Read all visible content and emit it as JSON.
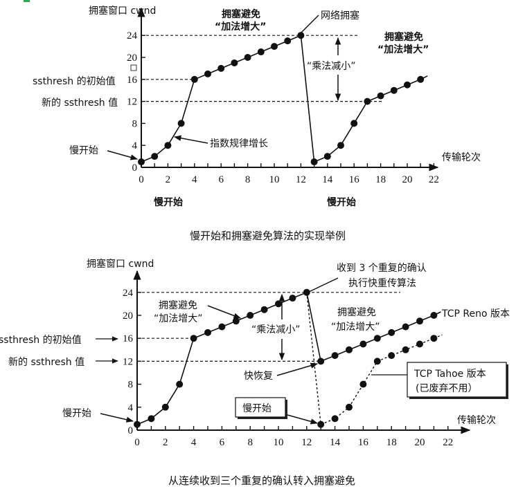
{
  "marker_color": "#22b14c",
  "top": {
    "y_axis_label": "拥塞窗口 cwnd",
    "x_axis_label": "传输轮次",
    "y_ticks": [
      "0",
      "4",
      "8",
      "12",
      "16",
      "20",
      "24"
    ],
    "x_ticks": [
      "0",
      "2",
      "4",
      "6",
      "8",
      "10",
      "12",
      "14",
      "16",
      "18",
      "20",
      "22"
    ],
    "ssthresh_init_label": "ssthresh 的初始值",
    "ssthresh_new_label": "新的 ssthresh 值",
    "ca_label_1a": "拥塞避免",
    "ca_label_1b": "“加法增大”",
    "ca_label_2a": "拥塞避免",
    "ca_label_2b": "“加法增大”",
    "congestion_label": "网络拥塞",
    "md_label": "“乘法减小”",
    "exp_label": "指数规律增长",
    "slow_start_label": "慢开始",
    "slow_start_under_1": "慢开始",
    "slow_start_under_2": "慢开始",
    "caption": "慢开始和拥塞避免算法的实现举例"
  },
  "bottom": {
    "y_axis_label": "拥塞窗口 cwnd",
    "x_axis_label": "传输轮次",
    "y_ticks": [
      "0",
      "4",
      "8",
      "12",
      "16",
      "20",
      "24"
    ],
    "x_ticks": [
      "0",
      "2",
      "4",
      "6",
      "8",
      "10",
      "12",
      "14",
      "16",
      "18",
      "20",
      "22"
    ],
    "ssthresh_init_label": "ssthresh 的初始值",
    "ssthresh_new_label": "新的 ssthresh 值",
    "ca_label_1a": "拥塞避免",
    "ca_label_1b": "“加法增大”",
    "ca_label_2a": "拥塞避免",
    "ca_label_2b": "“加法增大”",
    "dupack_label_1": "收到 3 个重复的确认",
    "dupack_label_2": "执行快重传算法",
    "md_label": "“乘法减小”",
    "fast_recovery_label": "快恢复",
    "slow_start_label": "慢开始",
    "slow_start_box": "慢开始",
    "reno_label": "TCP Reno 版本",
    "tahoe_label_1": "TCP Tahoe 版本",
    "tahoe_label_2": "(已废弃不用）",
    "caption": "从连续收到三个重复的确认转入拥塞避免"
  },
  "chart_data": [
    {
      "type": "line",
      "title": "慢开始和拥塞避免算法的实现举例",
      "xlabel": "传输轮次",
      "ylabel": "拥塞窗口 cwnd",
      "xlim": [
        0,
        22
      ],
      "ylim": [
        0,
        24
      ],
      "x_ticks": [
        0,
        2,
        4,
        6,
        8,
        10,
        12,
        14,
        16,
        18,
        20,
        22
      ],
      "y_ticks": [
        0,
        4,
        8,
        12,
        16,
        20,
        24
      ],
      "reference_lines": [
        {
          "y": 24,
          "label": ""
        },
        {
          "y": 16,
          "label": "ssthresh 的初始值"
        },
        {
          "y": 12,
          "label": "新的 ssthresh 值"
        }
      ],
      "series": [
        {
          "name": "cwnd",
          "x": [
            0,
            1,
            2,
            3,
            4,
            5,
            6,
            7,
            8,
            9,
            10,
            11,
            12,
            13,
            14,
            15,
            16,
            17,
            18,
            19,
            20,
            21
          ],
          "values": [
            1,
            2,
            4,
            8,
            16,
            17,
            18,
            19,
            20,
            21,
            22,
            23,
            24,
            1,
            2,
            4,
            8,
            12,
            13,
            14,
            15,
            16
          ]
        }
      ],
      "annotations": [
        "慢开始",
        "指数规律增长",
        "拥塞避免 “加法增大”",
        "网络拥塞",
        "“乘法减小”",
        "慢开始",
        "慢开始"
      ]
    },
    {
      "type": "line",
      "title": "从连续收到三个重复的确认转入拥塞避免",
      "xlabel": "传输轮次",
      "ylabel": "拥塞窗口 cwnd",
      "xlim": [
        0,
        22
      ],
      "ylim": [
        0,
        24
      ],
      "x_ticks": [
        0,
        2,
        4,
        6,
        8,
        10,
        12,
        14,
        16,
        18,
        20,
        22
      ],
      "y_ticks": [
        0,
        4,
        8,
        12,
        16,
        20,
        24
      ],
      "reference_lines": [
        {
          "y": 24,
          "label": ""
        },
        {
          "y": 16,
          "label": "ssthresh 的初始值"
        },
        {
          "y": 12,
          "label": "新的 ssthresh 值"
        }
      ],
      "series": [
        {
          "name": "TCP Reno 版本",
          "x": [
            0,
            1,
            2,
            3,
            4,
            5,
            6,
            7,
            8,
            9,
            10,
            11,
            12,
            13,
            14,
            15,
            16,
            17,
            18,
            19,
            20,
            21
          ],
          "values": [
            1,
            2,
            4,
            8,
            16,
            17,
            18,
            19,
            20,
            21,
            22,
            23,
            24,
            12,
            13,
            14,
            15,
            16,
            17,
            18,
            19,
            20
          ]
        },
        {
          "name": "TCP Tahoe 版本 (已废弃不用）",
          "style": "dashed",
          "x": [
            12,
            13,
            14,
            15,
            16,
            17,
            18,
            19,
            20,
            21
          ],
          "values": [
            24,
            1,
            2,
            4,
            8,
            12,
            13,
            14,
            15,
            16
          ]
        }
      ],
      "annotations": [
        "收到 3 个重复的确认 执行快重传算法",
        "拥塞避免 “加法增大”",
        "“乘法减小”",
        "快恢复",
        "慢开始"
      ]
    }
  ]
}
